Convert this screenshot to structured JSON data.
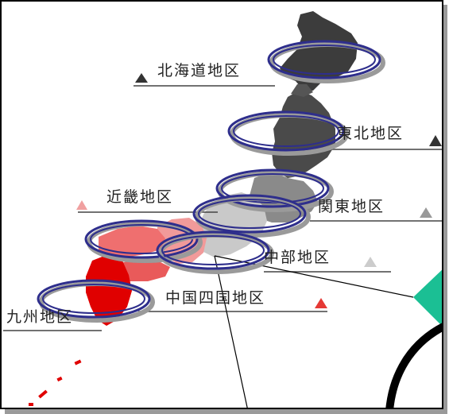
{
  "map": {
    "regions": [
      {
        "id": "hokkaido",
        "label": "北海道地区",
        "marker_color": "#333333",
        "marker_side": "left"
      },
      {
        "id": "tohoku",
        "label": "東北地区",
        "marker_color": "#333333",
        "marker_side": "right"
      },
      {
        "id": "kanto",
        "label": "関東地区",
        "marker_color": "#999999",
        "marker_side": "right"
      },
      {
        "id": "chubu",
        "label": "中部地区",
        "marker_color": "#cccccc",
        "marker_side": "right"
      },
      {
        "id": "kinki",
        "label": "近畿地区",
        "marker_color": "#f0a0a0",
        "marker_side": "left"
      },
      {
        "id": "chugoku_shikoku",
        "label": "中国四国地区",
        "marker_color": "#e53935",
        "marker_side": "right"
      },
      {
        "id": "kyushu",
        "label": "九州地区",
        "marker_color": "#cc0000",
        "marker_side": "none"
      }
    ],
    "colors": {
      "ring": "#2e2e8c",
      "ring_shadow": "#9a9a9a",
      "land_dark": "#3c3c3c",
      "land_mid": "#7a7a7a",
      "land_light": "#c9c9c9",
      "land_pink": "#f19a9a",
      "land_salmon": "#ef6f6f",
      "land_red": "#e00000",
      "accent_teal": "#1bbf94"
    }
  }
}
